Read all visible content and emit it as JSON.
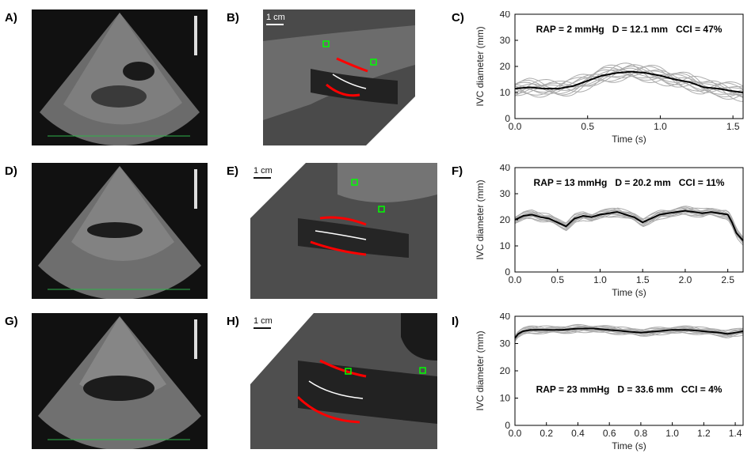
{
  "panels": {
    "a": "A)",
    "b": "B)",
    "c": "C)",
    "d": "D)",
    "e": "E)",
    "f": "F)",
    "g": "G)",
    "h": "H)",
    "i": "I)"
  },
  "scale_bar": "1 cm",
  "colors": {
    "wall_trace": "#ff0000",
    "centerline": "#ffffff",
    "marker": "#00ff00",
    "individual_cycles": "#aaaaaa",
    "mean_trace": "#000000"
  },
  "chart_data": [
    {
      "type": "line",
      "panel": "C",
      "annotation": "RAP = 2 mmHg   D = 12.1 mm   CCI = 47%",
      "xlabel": "Time (s)",
      "ylabel": "IVC diameter (mm)",
      "xlim": [
        0,
        1.57
      ],
      "ylim": [
        0,
        40
      ],
      "xticks": [
        "0.0",
        "0.5",
        "1.0",
        "1.5"
      ],
      "xtick_values": [
        0,
        0.5,
        1.0,
        1.5
      ],
      "yticks": [
        "0",
        "10",
        "20",
        "30",
        "40"
      ],
      "ytick_values": [
        0,
        10,
        20,
        30,
        40
      ],
      "mean": {
        "x": [
          0,
          0.1,
          0.2,
          0.3,
          0.4,
          0.5,
          0.6,
          0.7,
          0.8,
          0.9,
          1.0,
          1.1,
          1.2,
          1.3,
          1.4,
          1.5,
          1.57
        ],
        "y": [
          11.5,
          12,
          11.5,
          11.5,
          12.5,
          14.5,
          16.5,
          17.5,
          18,
          17.5,
          16.5,
          15,
          14,
          12,
          11.5,
          10.5,
          10
        ]
      },
      "spread": 3.5
    },
    {
      "type": "line",
      "panel": "F",
      "annotation": "RAP = 13 mmHg   D = 20.2 mm   CCI = 11%",
      "xlabel": "Time (s)",
      "ylabel": "IVC diameter (mm)",
      "xlim": [
        0,
        2.68
      ],
      "ylim": [
        0,
        40
      ],
      "xticks": [
        "0.0",
        "0.5",
        "1.0",
        "1.5",
        "2.0",
        "2.5"
      ],
      "xtick_values": [
        0,
        0.5,
        1.0,
        1.5,
        2.0,
        2.5
      ],
      "yticks": [
        "0",
        "10",
        "20",
        "30",
        "40"
      ],
      "ytick_values": [
        0,
        10,
        20,
        30,
        40
      ],
      "mean": {
        "x": [
          0,
          0.1,
          0.2,
          0.3,
          0.4,
          0.5,
          0.6,
          0.7,
          0.8,
          0.9,
          1.0,
          1.1,
          1.2,
          1.3,
          1.4,
          1.5,
          1.6,
          1.7,
          1.8,
          1.9,
          2.0,
          2.1,
          2.2,
          2.3,
          2.4,
          2.5,
          2.55,
          2.6,
          2.68
        ],
        "y": [
          20,
          21.5,
          22,
          21,
          20.5,
          19,
          17.5,
          20.5,
          21.5,
          21,
          22,
          22.5,
          23,
          22,
          21,
          19,
          20.5,
          22,
          22.5,
          23,
          23.5,
          23,
          22.5,
          23,
          22.5,
          22,
          19,
          15,
          12
        ]
      },
      "spread": 1.8
    },
    {
      "type": "line",
      "panel": "I",
      "annotation": "RAP = 23 mmHg   D = 33.6 mm   CCI = 4%",
      "xlabel": "Time (s)",
      "ylabel": "IVC diameter (mm)",
      "xlim": [
        0,
        1.45
      ],
      "ylim": [
        0,
        40
      ],
      "xticks": [
        "0.0",
        "0.2",
        "0.4",
        "0.6",
        "0.8",
        "1.0",
        "1.2",
        "1.4"
      ],
      "xtick_values": [
        0,
        0.2,
        0.4,
        0.6,
        0.8,
        1.0,
        1.2,
        1.4
      ],
      "yticks": [
        "0",
        "10",
        "20",
        "30",
        "40"
      ],
      "ytick_values": [
        0,
        10,
        20,
        30,
        40
      ],
      "mean": {
        "x": [
          0,
          0.02,
          0.05,
          0.1,
          0.2,
          0.3,
          0.4,
          0.5,
          0.6,
          0.7,
          0.8,
          0.9,
          1.0,
          1.1,
          1.2,
          1.3,
          1.35,
          1.4,
          1.45
        ],
        "y": [
          32,
          33.5,
          34.5,
          35,
          35,
          35,
          35.5,
          35.5,
          35,
          34.5,
          34,
          34.5,
          35,
          35,
          34.5,
          34,
          33.5,
          34,
          34.5
        ]
      },
      "spread": 1.5
    }
  ]
}
